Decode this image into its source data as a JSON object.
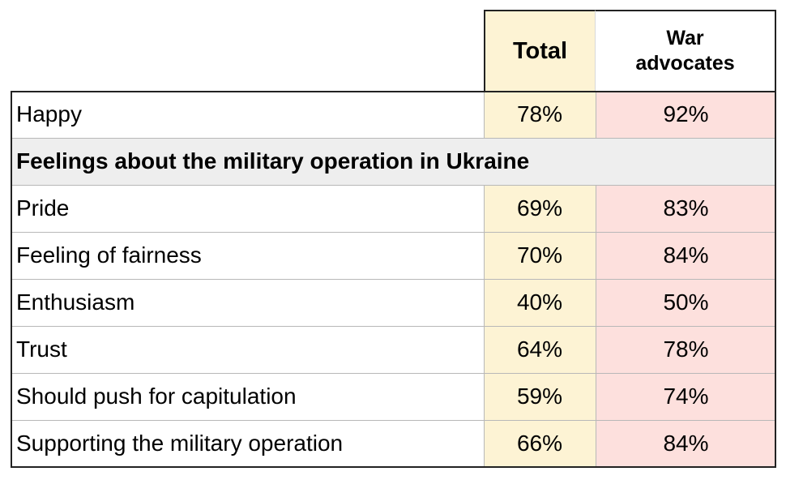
{
  "chart_data": {
    "type": "table",
    "columns": [
      "",
      "Total",
      "War advocates"
    ],
    "rows": [
      {
        "label": "Happy",
        "total": "78%",
        "war": "92%"
      },
      {
        "section": "Feelings about the military operation in Ukraine"
      },
      {
        "label": "Pride",
        "total": "69%",
        "war": "83%"
      },
      {
        "label": "Feeling of fairness",
        "total": "70%",
        "war": "84%"
      },
      {
        "label": "Enthusiasm",
        "total": "40%",
        "war": "50%"
      },
      {
        "label": "Trust",
        "total": "64%",
        "war": "78%"
      },
      {
        "label": "Should push for capitulation",
        "total": "59%",
        "war": "74%"
      },
      {
        "label": "Supporting the military operation",
        "total": "66%",
        "war": "84%"
      }
    ]
  },
  "colors": {
    "total_column": "#fdf3d4",
    "war_column": "#fde0dd",
    "section_row": "#eeeeee",
    "border": "#222222",
    "grid": "#b8b8b8"
  }
}
